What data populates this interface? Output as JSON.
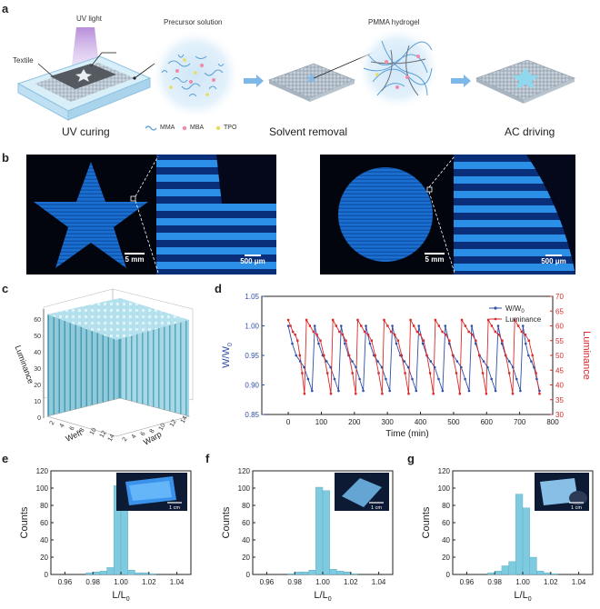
{
  "panels": {
    "a": "a",
    "b": "b",
    "c": "c",
    "d": "d",
    "e": "e",
    "f": "f",
    "g": "g"
  },
  "panel_a": {
    "uv_light": "UV light",
    "textile": "Textile",
    "precursor": "Precursor solution",
    "pmma": "PMMA hydrogel",
    "steps": [
      "UV curing",
      "Solvent removal",
      "AC driving"
    ],
    "legend": [
      "MMA",
      "MBA",
      "TPO"
    ],
    "colors": {
      "mma": "#5a9fd6",
      "mba": "#f08aa8",
      "tpo": "#e8dc58",
      "arrow": "#7db8e8"
    }
  },
  "panel_b": {
    "scale_left_large": "5 mm",
    "scale_left_zoom": "500 μm",
    "scale_right_large": "5 mm",
    "scale_right_zoom": "500 μm"
  },
  "panel_c": {
    "z_label": "Luminance",
    "x_label": "Weft",
    "y_label": "Warp",
    "z_ticks": [
      "0",
      "10",
      "20",
      "30",
      "40",
      "50",
      "60"
    ],
    "weft_ticks": [
      "2",
      "4",
      "6",
      "8",
      "10",
      "12",
      "14"
    ],
    "warp_ticks": [
      "2",
      "4",
      "6",
      "8",
      "10",
      "12",
      "14"
    ]
  },
  "chart_data": [
    {
      "type": "line",
      "title": "",
      "xlabel": "Time (min)",
      "ylabel": "W/W0",
      "ylabel_main": "W/W",
      "ylabel_sub": "0",
      "y2label": "Luminance",
      "xlim": [
        -80,
        800
      ],
      "ylim": [
        0.85,
        1.05
      ],
      "y2lim": [
        30,
        70
      ],
      "xticks": [
        "0",
        "100",
        "200",
        "300",
        "400",
        "500",
        "600",
        "700",
        "800"
      ],
      "yticks": [
        "0.85",
        "0.90",
        "0.95",
        "1.00",
        "1.05"
      ],
      "y2ticks": [
        "30",
        "35",
        "40",
        "45",
        "50",
        "55",
        "60",
        "65",
        "70"
      ],
      "legend": [
        "W/W0",
        "Luminance"
      ],
      "legend_main": [
        "W/W",
        "Luminance"
      ],
      "legend_sub": "0",
      "colors": {
        "w": "#2f4fa8",
        "lum": "#d92b2b"
      },
      "series": [
        {
          "name": "W/W0",
          "cycles_start": [
            0,
            80,
            160,
            235,
            315,
            395,
            475,
            555,
            635,
            710
          ],
          "cycle_values": [
            1.0,
            0.97,
            0.95,
            0.94,
            0.93,
            0.91,
            0.89
          ]
        },
        {
          "name": "Luminance",
          "cycles_start": [
            0,
            55,
            135,
            210,
            290,
            370,
            445,
            525,
            605,
            685
          ],
          "cycle_values": [
            62,
            60,
            58,
            57,
            55,
            50,
            44,
            37
          ]
        }
      ]
    },
    {
      "type": "bar",
      "xlabel": "L/L0",
      "xlabel_main": "L/L",
      "xlabel_sub": "0",
      "ylabel": "Counts",
      "xlim": [
        0.95,
        1.05
      ],
      "ylim": [
        0,
        120
      ],
      "xticks": [
        "0.96",
        "0.98",
        "1.00",
        "1.02",
        "1.04"
      ],
      "yticks": [
        "0",
        "20",
        "40",
        "60",
        "80",
        "100",
        "120"
      ],
      "bin_width": 0.005,
      "bins": [
        0.9775,
        0.9825,
        0.9875,
        0.9925,
        0.9975,
        1.0025,
        1.0075,
        1.0125,
        1.0175,
        1.0225
      ],
      "values": [
        2,
        3,
        4,
        8,
        103,
        84,
        5,
        2,
        2,
        1
      ],
      "inset_scale": "1 cm",
      "color": "#7ecbe0"
    },
    {
      "type": "bar",
      "xlabel": "L/L0",
      "xlabel_main": "L/L",
      "xlabel_sub": "0",
      "ylabel": "Counts",
      "xlim": [
        0.95,
        1.05
      ],
      "ylim": [
        0,
        120
      ],
      "xticks": [
        "0.96",
        "0.98",
        "1.00",
        "1.02",
        "1.04"
      ],
      "yticks": [
        "0",
        "20",
        "40",
        "60",
        "80",
        "100",
        "120"
      ],
      "bin_width": 0.005,
      "bins": [
        0.9775,
        0.9825,
        0.9875,
        0.9925,
        0.9975,
        1.0025,
        1.0075,
        1.0125,
        1.0175,
        1.0225
      ],
      "values": [
        1,
        3,
        3,
        5,
        101,
        97,
        6,
        4,
        3,
        1
      ],
      "inset_scale": "1 cm",
      "color": "#7ecbe0"
    },
    {
      "type": "bar",
      "xlabel": "L/L0",
      "xlabel_main": "L/L",
      "xlabel_sub": "0",
      "ylabel": "Counts",
      "xlim": [
        0.95,
        1.05
      ],
      "ylim": [
        0,
        120
      ],
      "xticks": [
        "0.96",
        "0.98",
        "1.00",
        "1.02",
        "1.04"
      ],
      "yticks": [
        "0",
        "20",
        "40",
        "60",
        "80",
        "100",
        "120"
      ],
      "bin_width": 0.005,
      "bins": [
        0.9775,
        0.9825,
        0.9875,
        0.9925,
        0.9975,
        1.0025,
        1.0075,
        1.0125,
        1.0175,
        1.0225
      ],
      "values": [
        2,
        4,
        10,
        15,
        93,
        77,
        20,
        4,
        2,
        1
      ],
      "inset_scale": "1 cm",
      "color": "#7ecbe0"
    }
  ]
}
